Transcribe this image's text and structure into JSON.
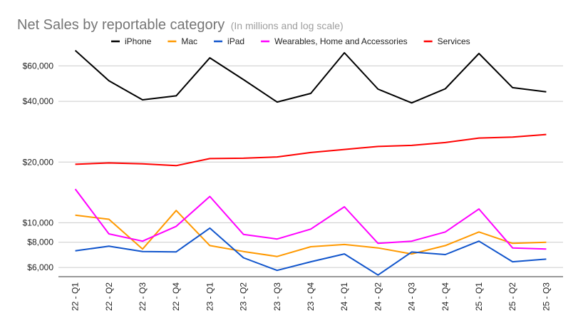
{
  "chart_data": {
    "type": "line",
    "title": "Net Sales by reportable category",
    "subtitle": "(In millions and log scale)",
    "xlabel": "",
    "ylabel": "",
    "yscale": "log",
    "ylim": [
      5400,
      72000
    ],
    "yticks": [
      {
        "value": 6000,
        "label": "$6,000"
      },
      {
        "value": 8000,
        "label": "$8,000"
      },
      {
        "value": 10000,
        "label": "$10,000"
      },
      {
        "value": 20000,
        "label": "$20,000"
      },
      {
        "value": 40000,
        "label": "$40,000"
      },
      {
        "value": 60000,
        "label": "$60,000"
      }
    ],
    "categories": [
      "22 - Q1",
      "22 - Q2",
      "22 - Q3",
      "22 - Q4",
      "23 - Q1",
      "23 - Q2",
      "23 - Q3",
      "23 - Q4",
      "24 - Q1",
      "24 - Q2",
      "24 - Q3",
      "24 - Q4",
      "25 - Q1",
      "25 - Q2",
      "25 - Q3"
    ],
    "legend_position": "top",
    "series": [
      {
        "name": "iPhone",
        "color": "#000000",
        "values": [
          71600,
          50600,
          40700,
          42600,
          65800,
          51300,
          39700,
          43800,
          69700,
          46000,
          39300,
          46200,
          69100,
          46800,
          44600
        ]
      },
      {
        "name": "Mac",
        "color": "#ff9900",
        "values": [
          10900,
          10400,
          7400,
          11500,
          7700,
          7200,
          6800,
          7600,
          7800,
          7500,
          7000,
          7700,
          9000,
          7900,
          8000
        ]
      },
      {
        "name": "iPad",
        "color": "#1155cc",
        "values": [
          7250,
          7650,
          7200,
          7170,
          9400,
          6700,
          5800,
          6400,
          7000,
          5500,
          7160,
          6950,
          8100,
          6400,
          6600
        ]
      },
      {
        "name": "Wearables, Home and Accessories",
        "color": "#ff00ff",
        "values": [
          14700,
          8800,
          8100,
          9600,
          13500,
          8750,
          8300,
          9300,
          12000,
          7900,
          8100,
          9000,
          11700,
          7500,
          7400
        ]
      },
      {
        "name": "Services",
        "color": "#ff0000",
        "values": [
          19500,
          19800,
          19600,
          19200,
          20800,
          20900,
          21200,
          22300,
          23100,
          23900,
          24200,
          25000,
          26300,
          26600,
          27400
        ]
      }
    ]
  }
}
